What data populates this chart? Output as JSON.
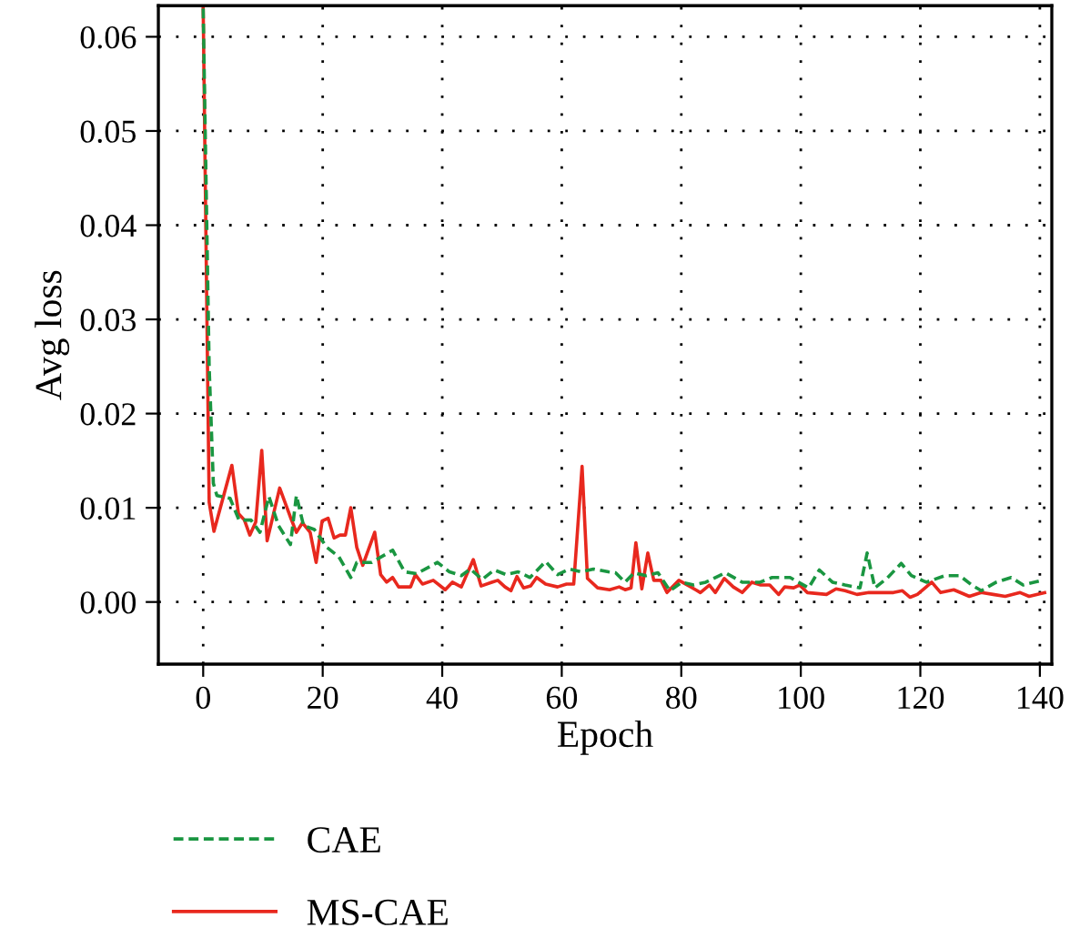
{
  "chart_data": {
    "type": "line",
    "xlabel": "Epoch",
    "ylabel": "Avg loss",
    "xlim": [
      -7.5,
      142
    ],
    "ylim": [
      -0.0066,
      0.0633
    ],
    "xticks": [
      0,
      20,
      40,
      60,
      80,
      100,
      120,
      140
    ],
    "yticks": [
      {
        "value": 0,
        "label": "0.00"
      },
      {
        "value": 0.01,
        "label": "0.01"
      },
      {
        "value": 0.02,
        "label": "0.02"
      },
      {
        "value": 0.03,
        "label": "0.03"
      },
      {
        "value": 0.04,
        "label": "0.04"
      },
      {
        "value": 0.05,
        "label": "0.05"
      },
      {
        "value": 0.06,
        "label": "0.06"
      }
    ],
    "grid": true,
    "legend": "bottom",
    "marker": "none",
    "series": [
      {
        "name": "CAE",
        "color": "#1a9641",
        "line_style": "dashed",
        "x": [
          0,
          1,
          1.7,
          2.3,
          4.5,
          6,
          8,
          9.5,
          11,
          12.6,
          14.6,
          15.6,
          16.8,
          18.6,
          20.7,
          22.7,
          24.7,
          25.7,
          28.2,
          31.7,
          33.7,
          35.7,
          39.2,
          41.2,
          43.2,
          44.7,
          46.7,
          48.7,
          50.7,
          52.7,
          54.7,
          57.3,
          59.3,
          61.3,
          63.3,
          65.3,
          67.8,
          69,
          70.6,
          72.1,
          74.1,
          76.1,
          78.1,
          80.1,
          82.1,
          84.1,
          87.4,
          90.2,
          93.2,
          95.2,
          98.2,
          101.3,
          103.1,
          105.3,
          107.4,
          109.9,
          111.1,
          112.4,
          114.4,
          116.8,
          118.5,
          121,
          124.1,
          126.6,
          128.6,
          130.2,
          132.7,
          135.2,
          137.2,
          140.3
        ],
        "values": [
          0.063,
          0.025,
          0.0126,
          0.0113,
          0.011,
          0.0087,
          0.0087,
          0.0074,
          0.0112,
          0.0081,
          0.0061,
          0.0113,
          0.0081,
          0.0077,
          0.0058,
          0.0048,
          0.0026,
          0.0042,
          0.0042,
          0.0055,
          0.0032,
          0.003,
          0.0042,
          0.0032,
          0.0028,
          0.0035,
          0.0024,
          0.0034,
          0.0029,
          0.0032,
          0.0026,
          0.0043,
          0.0029,
          0.0035,
          0.0032,
          0.0035,
          0.0032,
          0.0031,
          0.0021,
          0.0031,
          0.0028,
          0.0031,
          0.0012,
          0.0021,
          0.0018,
          0.0021,
          0.0031,
          0.0021,
          0.0021,
          0.0026,
          0.0026,
          0.0015,
          0.0034,
          0.0021,
          0.0018,
          0.0015,
          0.0052,
          0.0015,
          0.0025,
          0.0041,
          0.0028,
          0.0021,
          0.0028,
          0.0028,
          0.0018,
          0.0012,
          0.0021,
          0.0026,
          0.0018,
          0.0023
        ]
      },
      {
        "name": "MS-CAE",
        "color": "#e8281e",
        "line_style": "solid",
        "x": [
          0,
          1,
          1.8,
          4.8,
          5.9,
          6.9,
          7.8,
          8.8,
          9.8,
          10.7,
          12.8,
          14.6,
          15.6,
          16.6,
          17.9,
          18.9,
          19.9,
          20.9,
          21.9,
          22.9,
          23.8,
          24.7,
          25.7,
          26.7,
          28.7,
          29.7,
          30.7,
          31.7,
          32.7,
          34.7,
          35.5,
          36.7,
          38.5,
          40.5,
          41.7,
          43.2,
          45.2,
          46.5,
          48.3,
          49.3,
          50.5,
          51.5,
          52.5,
          53.6,
          54.8,
          55.8,
          57.3,
          59.3,
          60.8,
          62,
          63.4,
          64.3,
          66,
          68,
          69.6,
          70.6,
          71.6,
          72.4,
          73.4,
          74.4,
          75.4,
          76.6,
          77.6,
          79.6,
          81.6,
          83.2,
          84.7,
          85.7,
          87.2,
          88.7,
          90.2,
          91.8,
          93.3,
          94.8,
          96.3,
          97.3,
          98.8,
          99.8,
          101.1,
          104.3,
          105.9,
          107.4,
          109.4,
          111.4,
          115.5,
          117,
          118.3,
          119.5,
          121.9,
          123.4,
          125.6,
          128.2,
          130.2,
          132.2,
          134.2,
          136.7,
          138.2,
          140.8
        ],
        "values": [
          0.063,
          0.0106,
          0.0075,
          0.0145,
          0.0094,
          0.0087,
          0.0071,
          0.0085,
          0.0161,
          0.0065,
          0.0121,
          0.009,
          0.0074,
          0.0084,
          0.0074,
          0.0042,
          0.0086,
          0.0089,
          0.0068,
          0.0071,
          0.0071,
          0.01,
          0.0058,
          0.0039,
          0.0074,
          0.0029,
          0.0021,
          0.0026,
          0.0016,
          0.0016,
          0.0029,
          0.0019,
          0.0023,
          0.0013,
          0.0021,
          0.0016,
          0.0045,
          0.0017,
          0.0021,
          0.0023,
          0.0016,
          0.0012,
          0.0027,
          0.0015,
          0.0017,
          0.0026,
          0.0019,
          0.0016,
          0.0019,
          0.0019,
          0.0144,
          0.0025,
          0.0015,
          0.0013,
          0.0016,
          0.0013,
          0.0015,
          0.0063,
          0.0014,
          0.0052,
          0.0023,
          0.0023,
          0.001,
          0.0023,
          0.0016,
          0.001,
          0.0018,
          0.001,
          0.0025,
          0.0016,
          0.001,
          0.0021,
          0.0018,
          0.0018,
          0.0008,
          0.0016,
          0.0015,
          0.0018,
          0.001,
          0.0008,
          0.0014,
          0.0012,
          0.0008,
          0.001,
          0.001,
          0.0012,
          0.0005,
          0.0008,
          0.0021,
          0.001,
          0.0013,
          0.0006,
          0.001,
          0.0008,
          0.0006,
          0.001,
          0.0006,
          0.001
        ]
      }
    ]
  }
}
